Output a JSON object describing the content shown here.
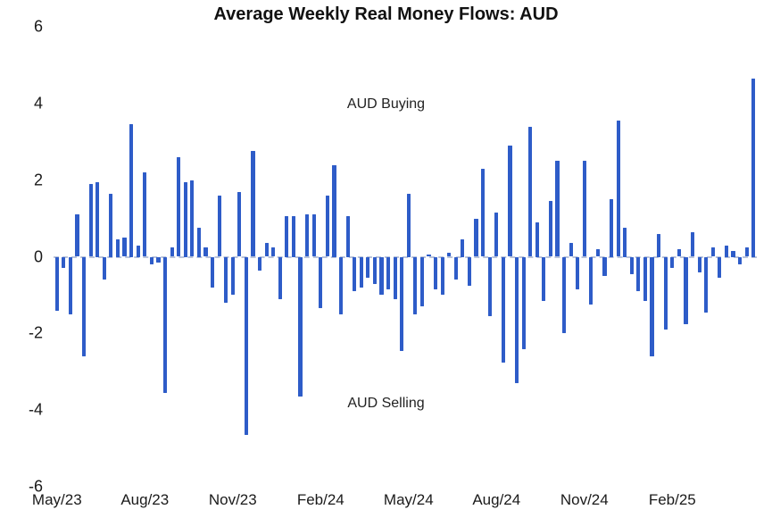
{
  "chart_data": {
    "type": "bar",
    "title": "Average Weekly Real Money Flows: AUD",
    "xlabel": "",
    "ylabel": "",
    "ylim": [
      -6,
      6
    ],
    "yticks": [
      6,
      4,
      2,
      0,
      -2,
      -4,
      -6
    ],
    "grid": false,
    "zero_line_style": "dashed",
    "bar_color": "#2e5cc8",
    "annotations": [
      {
        "text": "AUD Buying",
        "position": "upper-center"
      },
      {
        "text": "AUD Selling",
        "position": "lower-center"
      }
    ],
    "x_ticks": [
      {
        "label": "May/23",
        "week": 0
      },
      {
        "label": "Aug/23",
        "week": 13
      },
      {
        "label": "Nov/23",
        "week": 26
      },
      {
        "label": "Feb/24",
        "week": 39
      },
      {
        "label": "May/24",
        "week": 52
      },
      {
        "label": "Aug/24",
        "week": 65
      },
      {
        "label": "Nov/24",
        "week": 78
      },
      {
        "label": "Feb/25",
        "week": 91
      }
    ],
    "x_unit": "week",
    "values": [
      -1.4,
      -0.3,
      -1.5,
      1.1,
      -2.6,
      1.9,
      1.95,
      -0.6,
      1.65,
      0.45,
      0.5,
      3.45,
      0.3,
      2.2,
      -0.2,
      -0.15,
      -3.55,
      0.25,
      2.6,
      1.95,
      2.0,
      0.75,
      0.25,
      -0.8,
      1.6,
      -1.2,
      -1.0,
      1.7,
      -4.65,
      2.75,
      -0.35,
      0.35,
      0.25,
      -1.1,
      1.05,
      1.05,
      -3.65,
      1.1,
      1.1,
      -1.35,
      1.6,
      2.4,
      -1.5,
      1.05,
      -0.9,
      -0.8,
      -0.55,
      -0.7,
      -1.0,
      -0.85,
      -1.1,
      -2.45,
      1.65,
      -1.5,
      -1.3,
      0.05,
      -0.85,
      -1.0,
      0.1,
      -0.6,
      0.45,
      -0.75,
      1.0,
      2.3,
      -1.55,
      1.15,
      -2.75,
      2.9,
      -3.3,
      -2.4,
      3.4,
      0.9,
      -1.15,
      1.45,
      2.5,
      -2.0,
      0.35,
      -0.85,
      2.5,
      -1.25,
      0.2,
      -0.5,
      1.5,
      3.55,
      0.75,
      -0.45,
      -0.9,
      -1.15,
      -2.6,
      0.6,
      -1.9,
      -0.3,
      0.2,
      -1.75,
      0.65,
      -0.4,
      -1.45,
      0.25,
      -0.55,
      0.3,
      0.15,
      -0.2,
      0.25,
      4.65
    ]
  }
}
